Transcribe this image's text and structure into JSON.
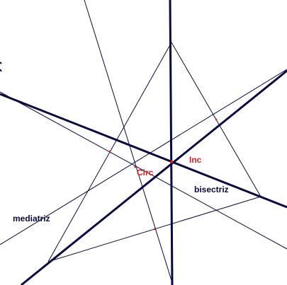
{
  "labels": {
    "incenter": "Inc",
    "circumcenter": "Circ",
    "bisector": "bisectriz",
    "perpendicular_bisector": "mediatriz"
  },
  "colors": {
    "line": "#0a0a3c",
    "point_label": "#cc2222",
    "text_label": "#0a0a3c",
    "background": "#ffffff"
  }
}
